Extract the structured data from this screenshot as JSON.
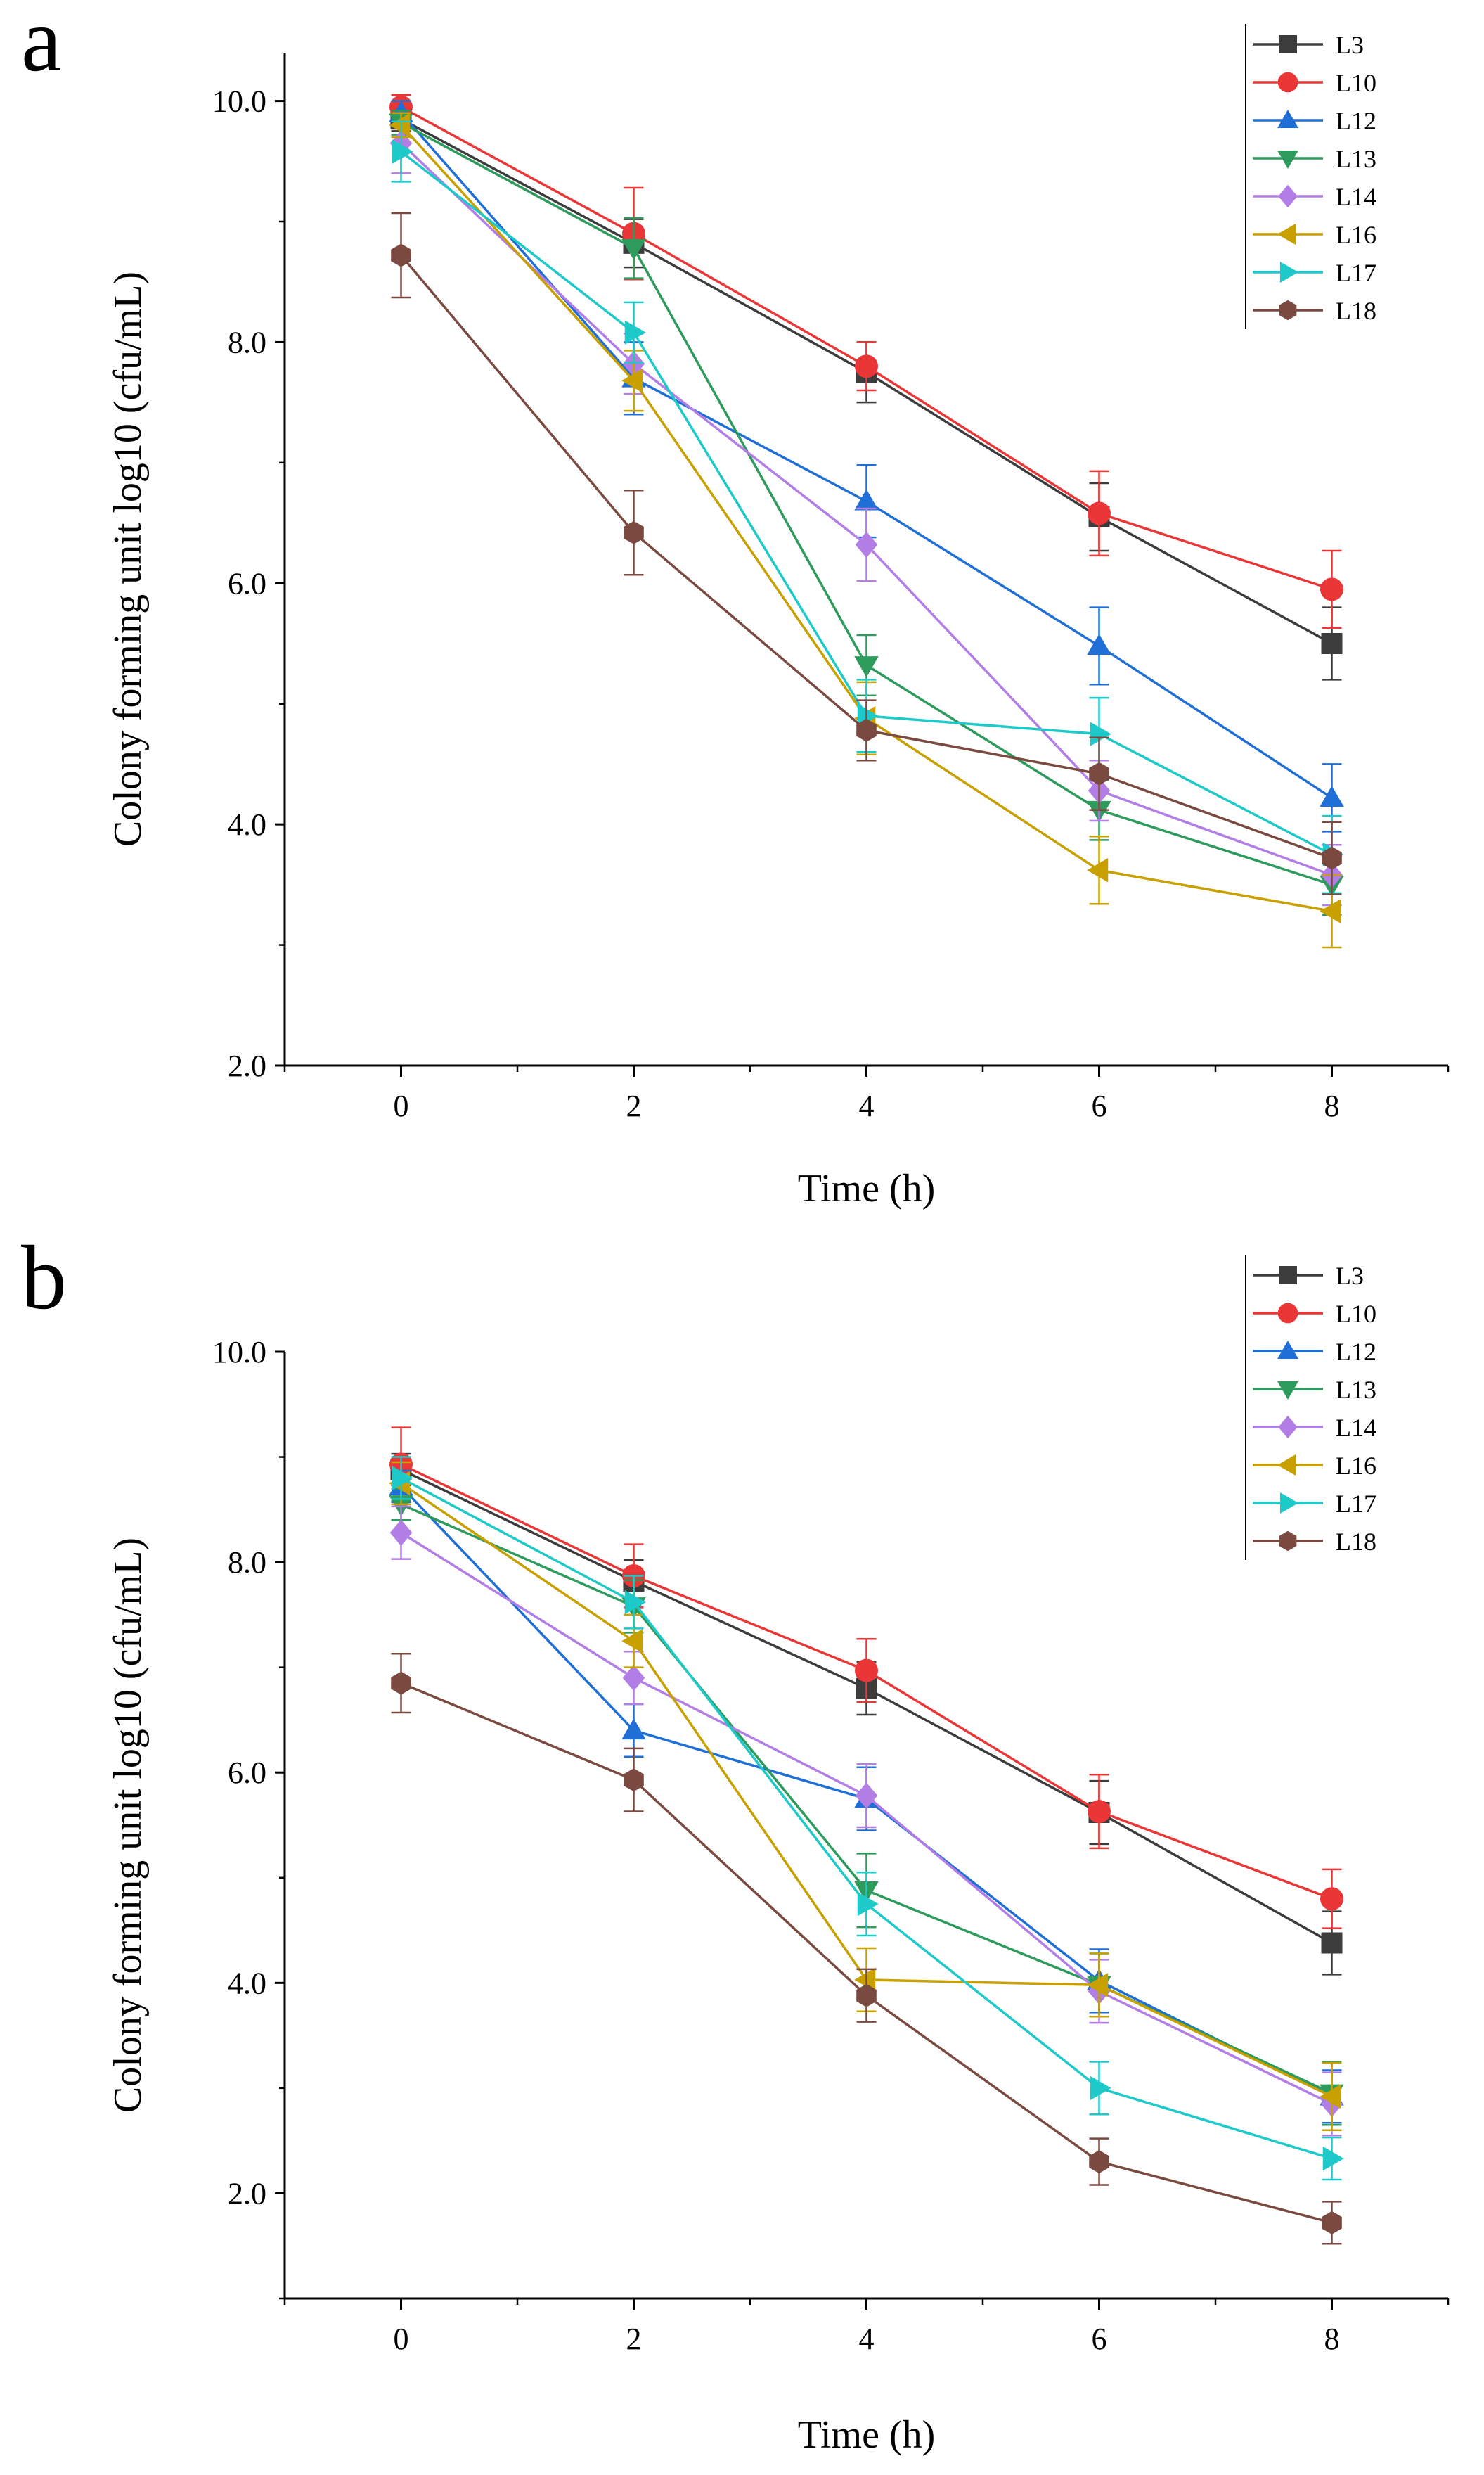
{
  "colors": {
    "L3": "#3c3c3c",
    "L10": "#ea3636",
    "L12": "#1f6fd6",
    "L13": "#2c9b5c",
    "L14": "#b27ee6",
    "L16": "#c8a000",
    "L17": "#1ec9c9",
    "L18": "#7a4a40"
  },
  "markers": {
    "L3": "square",
    "L10": "circle",
    "L12": "triangle-up",
    "L13": "triangle-down",
    "L14": "diamond",
    "L16": "triangle-left",
    "L17": "triangle-right",
    "L18": "hexagon"
  },
  "chart_data": [
    {
      "panel": "a",
      "type": "line",
      "xlabel": "Time (h)",
      "ylabel": "Colony forming unit log10 (cfu/mL)",
      "xlim": [
        -1,
        9
      ],
      "ylim": [
        2,
        10.4
      ],
      "xticks": [
        0,
        2,
        4,
        6,
        8
      ],
      "yticks": [
        2,
        4,
        6,
        8,
        10
      ],
      "ytick_labels": [
        "2.0",
        "4.0",
        "6.0",
        "8.0",
        "10.0"
      ],
      "x": [
        0,
        2,
        4,
        6,
        8
      ],
      "legend_position": "top-right",
      "series": [
        {
          "name": "L3",
          "values": [
            9.85,
            8.82,
            7.75,
            6.55,
            5.5
          ],
          "errors": [
            0.1,
            0.2,
            0.25,
            0.28,
            0.3
          ]
        },
        {
          "name": "L10",
          "values": [
            9.95,
            8.9,
            7.8,
            6.58,
            5.95
          ],
          "errors": [
            0.1,
            0.38,
            0.2,
            0.35,
            0.32
          ]
        },
        {
          "name": "L12",
          "values": [
            9.9,
            7.7,
            6.68,
            5.48,
            4.22
          ],
          "errors": [
            0.1,
            0.3,
            0.3,
            0.32,
            0.28
          ]
        },
        {
          "name": "L13",
          "values": [
            9.82,
            8.78,
            5.32,
            4.12,
            3.5
          ],
          "errors": [
            0.1,
            0.25,
            0.25,
            0.25,
            0.25
          ]
        },
        {
          "name": "L14",
          "values": [
            9.65,
            7.82,
            6.32,
            4.28,
            3.58
          ],
          "errors": [
            0.25,
            0.25,
            0.3,
            0.25,
            0.25
          ]
        },
        {
          "name": "L16",
          "values": [
            9.8,
            7.68,
            4.88,
            3.62,
            3.28
          ],
          "errors": [
            0.1,
            0.25,
            0.3,
            0.28,
            0.3
          ]
        },
        {
          "name": "L17",
          "values": [
            9.58,
            8.08,
            4.9,
            4.75,
            3.75
          ],
          "errors": [
            0.25,
            0.25,
            0.3,
            0.3,
            0.32
          ]
        },
        {
          "name": "L18",
          "values": [
            8.72,
            6.42,
            4.78,
            4.42,
            3.72
          ],
          "errors": [
            0.35,
            0.35,
            0.25,
            0.3,
            0.3
          ]
        }
      ]
    },
    {
      "panel": "b",
      "type": "line",
      "xlabel": "Time (h)",
      "ylabel": "Colony forming unit log10 (cfu/mL)",
      "xlim": [
        -1,
        9
      ],
      "ylim": [
        1,
        10
      ],
      "xticks": [
        0,
        2,
        4,
        6,
        8
      ],
      "yticks": [
        2,
        4,
        6,
        8,
        10
      ],
      "ytick_labels": [
        "2.0",
        "4.0",
        "6.0",
        "8.0",
        "10.0"
      ],
      "x": [
        0,
        2,
        4,
        6,
        8
      ],
      "legend_position": "top-right",
      "series": [
        {
          "name": "L3",
          "values": [
            8.88,
            7.82,
            6.8,
            5.62,
            4.38
          ],
          "errors": [
            0.15,
            0.2,
            0.25,
            0.3,
            0.3
          ]
        },
        {
          "name": "L10",
          "values": [
            8.93,
            7.87,
            6.97,
            5.63,
            4.8
          ],
          "errors": [
            0.35,
            0.3,
            0.3,
            0.35,
            0.28
          ]
        },
        {
          "name": "L12",
          "values": [
            8.72,
            6.4,
            5.75,
            4.02,
            2.92
          ],
          "errors": [
            0.15,
            0.25,
            0.3,
            0.3,
            0.25
          ]
        },
        {
          "name": "L13",
          "values": [
            8.55,
            7.58,
            4.88,
            3.98,
            2.95
          ],
          "errors": [
            0.15,
            0.25,
            0.35,
            0.3,
            0.3
          ]
        },
        {
          "name": "L14",
          "values": [
            8.28,
            6.9,
            5.78,
            3.92,
            2.85
          ],
          "errors": [
            0.25,
            0.25,
            0.3,
            0.3,
            0.3
          ]
        },
        {
          "name": "L16",
          "values": [
            8.75,
            7.25,
            4.03,
            3.98,
            2.92
          ],
          "errors": [
            0.2,
            0.25,
            0.3,
            0.3,
            0.32
          ]
        },
        {
          "name": "L17",
          "values": [
            8.8,
            7.62,
            4.75,
            3.0,
            2.33
          ],
          "errors": [
            0.2,
            0.25,
            0.3,
            0.25,
            0.2
          ]
        },
        {
          "name": "L18",
          "values": [
            6.85,
            5.93,
            3.88,
            2.3,
            1.72
          ],
          "errors": [
            0.28,
            0.3,
            0.25,
            0.22,
            0.2
          ]
        }
      ]
    }
  ]
}
